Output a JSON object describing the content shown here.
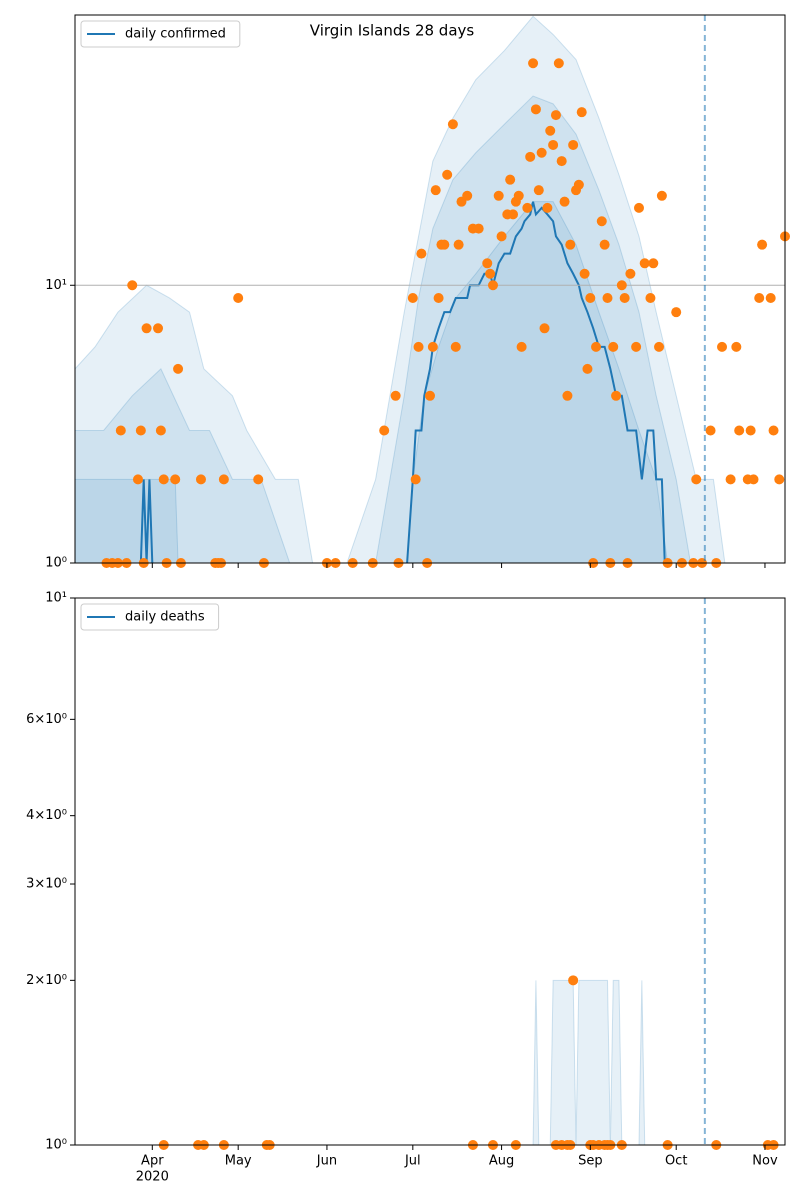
{
  "chart_data": [
    {
      "type": "line",
      "title": "Virgin Islands 28 days",
      "log_y": true,
      "grid": true,
      "legend": "upper left",
      "xlim": [
        65,
        313
      ],
      "ylim": [
        1,
        94
      ],
      "yticks": [
        {
          "value": 1,
          "label": "10⁰"
        },
        {
          "value": 10,
          "label": "10¹"
        }
      ],
      "vline": 285,
      "vline_color": "#1f77b4",
      "band_color": "#1f77b4",
      "bands": [
        {
          "x": [
            65,
            72,
            80,
            90,
            98,
            105,
            110,
            120,
            125,
            135,
            143,
            148,
            160,
            170,
            175,
            180,
            185,
            190,
            197,
            205,
            215,
            225,
            232,
            240,
            248,
            255,
            262,
            268,
            275,
            282,
            288,
            292
          ],
          "values": [
            5,
            6,
            8,
            10,
            9,
            8,
            5,
            4,
            3,
            2,
            2,
            1,
            1,
            2,
            4,
            8,
            15,
            28,
            40,
            55,
            70,
            93,
            80,
            65,
            40,
            25,
            15,
            8,
            4,
            2,
            2,
            1
          ]
        },
        {
          "x": [
            65,
            75,
            85,
            95,
            105,
            112,
            120,
            130,
            140,
            170,
            175,
            180,
            185,
            190,
            197,
            205,
            215,
            225,
            232,
            240,
            248,
            255,
            262,
            268,
            275,
            280
          ],
          "values": [
            3,
            3,
            4,
            5,
            3,
            3,
            2,
            2,
            1,
            1,
            2,
            4,
            9,
            16,
            24,
            30,
            38,
            48,
            45,
            35,
            22,
            14,
            8,
            4,
            2,
            1
          ]
        },
        {
          "x": [
            65,
            100,
            101,
            178,
            181,
            183,
            187,
            192,
            198,
            205,
            215,
            225,
            232,
            240,
            248,
            255,
            262,
            268,
            272
          ],
          "values": [
            2,
            2,
            1,
            1,
            1,
            2,
            4,
            6,
            9,
            11,
            15,
            20,
            20,
            14,
            8,
            5,
            3,
            2,
            1
          ]
        }
      ],
      "series": [
        {
          "name": "daily confirmed",
          "type": "line",
          "color": "#1f77b4",
          "x": [
            88,
            89,
            90,
            91,
            92,
            93,
            181,
            183,
            184,
            186,
            187,
            189,
            190,
            192,
            194,
            196,
            198,
            200,
            202,
            203,
            206,
            208,
            210,
            211,
            213,
            215,
            217,
            219,
            221,
            222,
            224,
            225,
            226,
            228,
            230,
            232,
            233,
            235,
            237,
            239,
            241,
            242,
            244,
            246,
            248,
            250,
            252,
            254,
            256,
            258,
            261,
            263,
            265,
            267,
            268,
            270,
            271,
            272
          ],
          "values": [
            1,
            2,
            1,
            2,
            1,
            null,
            1,
            2,
            3,
            3,
            4,
            5,
            6,
            7,
            8,
            8,
            9,
            9,
            9,
            10,
            10,
            11,
            11,
            10,
            12,
            13,
            13,
            15,
            16,
            17,
            18,
            20,
            18,
            19,
            18,
            17,
            15,
            14,
            12,
            11,
            10,
            9,
            8,
            7,
            6,
            6,
            5,
            4,
            4,
            3,
            3,
            2,
            3,
            3,
            2,
            2,
            1,
            1
          ]
        },
        {
          "type": "scatter",
          "color": "#ff7f0e",
          "x": [
            76,
            78,
            80,
            81,
            83,
            85,
            87,
            88,
            89,
            90,
            94,
            95,
            96,
            97,
            100,
            101,
            102,
            109,
            114,
            115,
            116,
            117,
            122,
            129,
            131,
            153,
            156,
            162,
            169,
            173,
            177,
            178,
            183,
            184,
            185,
            186,
            188,
            189,
            190,
            191,
            192,
            193,
            194,
            195,
            197,
            198,
            199,
            200,
            202,
            204,
            206,
            209,
            210,
            211,
            213,
            214,
            216,
            217,
            218,
            219,
            220,
            221,
            223,
            224,
            225,
            226,
            227,
            228,
            229,
            230,
            231,
            232,
            233,
            234,
            235,
            236,
            237,
            238,
            239,
            240,
            241,
            242,
            243,
            244,
            245,
            246,
            247,
            249,
            250,
            251,
            252,
            253,
            254,
            256,
            257,
            258,
            259,
            261,
            262,
            264,
            266,
            267,
            269,
            270,
            272,
            275,
            277,
            281,
            282,
            284,
            287,
            289,
            291,
            294,
            296,
            297,
            300,
            301,
            302,
            304,
            305,
            308,
            309,
            311,
            313
          ],
          "values": [
            1,
            1,
            1,
            3,
            1,
            10,
            2,
            3,
            1,
            7,
            7,
            3,
            2,
            1,
            2,
            5,
            1,
            2,
            1,
            1,
            1,
            2,
            9,
            2,
            1,
            1,
            1,
            1,
            1,
            3,
            4,
            1,
            9,
            2,
            6,
            13,
            1,
            4,
            6,
            22,
            9,
            14,
            14,
            25,
            38,
            6,
            14,
            20,
            21,
            16,
            16,
            12,
            11,
            10,
            21,
            15,
            18,
            24,
            18,
            20,
            21,
            6,
            19,
            29,
            63,
            43,
            22,
            30,
            7,
            19,
            36,
            32,
            41,
            63,
            28,
            20,
            4,
            14,
            32,
            22,
            23,
            42,
            11,
            5,
            9,
            1,
            6,
            17,
            14,
            9,
            1,
            6,
            4,
            10,
            9,
            1,
            11,
            6,
            19,
            12,
            9,
            12,
            6,
            21,
            1,
            8,
            1,
            1,
            2,
            1,
            3,
            1,
            6,
            2,
            6,
            3,
            2,
            3,
            2,
            9,
            14,
            9,
            3,
            2,
            15
          ]
        }
      ]
    },
    {
      "type": "line",
      "log_y": true,
      "grid": false,
      "legend": "upper left",
      "xlim": [
        65,
        313
      ],
      "ylim": [
        1,
        10
      ],
      "xticks": [
        {
          "value": 92,
          "label": "Apr"
        },
        {
          "value": 122,
          "label": "May"
        },
        {
          "value": 153,
          "label": "Jun"
        },
        {
          "value": 183,
          "label": "Jul"
        },
        {
          "value": 214,
          "label": "Aug"
        },
        {
          "value": 245,
          "label": "Sep"
        },
        {
          "value": 275,
          "label": "Oct"
        },
        {
          "value": 306,
          "label": "Nov"
        }
      ],
      "year_label": "2020",
      "yticks": [
        {
          "value": 1,
          "label": "10⁰"
        },
        {
          "value": 2,
          "label": "2×10⁰"
        },
        {
          "value": 3,
          "label": "3×10⁰"
        },
        {
          "value": 4,
          "label": "4×10⁰"
        },
        {
          "value": 6,
          "label": "6×10⁰"
        },
        {
          "value": 10,
          "label": "10¹"
        }
      ],
      "vline": 285,
      "vline_color": "#1f77b4",
      "band_color": "#1f77b4",
      "bands": [
        {
          "x": [
            225,
            226,
            227,
            231,
            232,
            239,
            240,
            241,
            251,
            252,
            253,
            255,
            256,
            262,
            263,
            264
          ],
          "values": [
            1,
            2,
            1,
            1,
            2,
            2,
            1,
            2,
            2,
            1,
            2,
            2,
            1,
            1,
            2,
            1
          ]
        }
      ],
      "series": [
        {
          "name": "daily deaths",
          "type": "line",
          "color": "#1f77b4"
        },
        {
          "type": "scatter",
          "color": "#ff7f0e",
          "x": [
            96,
            108,
            110,
            117,
            132,
            133,
            204,
            211,
            219,
            233,
            235,
            237,
            238,
            239,
            245,
            246,
            248,
            250,
            251,
            252,
            256,
            272,
            289,
            307,
            309
          ],
          "values": [
            1,
            1,
            1,
            1,
            1,
            1,
            1,
            1,
            1,
            1,
            1,
            1,
            1,
            2,
            1,
            1,
            1,
            1,
            1,
            1,
            1,
            1,
            1,
            1,
            1
          ]
        }
      ]
    }
  ]
}
